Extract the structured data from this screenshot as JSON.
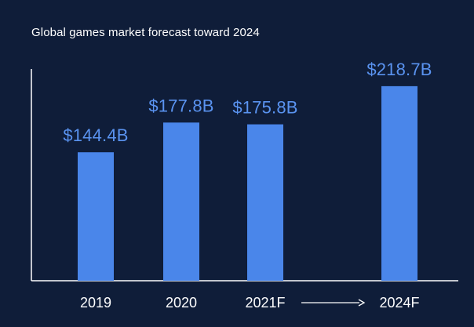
{
  "chart_data": {
    "type": "bar",
    "title": "Global games market forecast toward 2024",
    "categories": [
      "2019",
      "2020",
      "2021F",
      "2024F"
    ],
    "values": [
      144.4,
      177.8,
      175.8,
      218.7
    ],
    "data_labels": [
      "$144.4B",
      "$177.8B",
      "$175.8B",
      "$218.7B"
    ],
    "unit": "B USD",
    "xlabel": "",
    "ylabel": "",
    "ylim": [
      0,
      238
    ],
    "grid": false,
    "legend": "none",
    "annotations": [
      {
        "type": "arrow",
        "from_category": "2021F",
        "to_category": "2024F"
      }
    ],
    "colors": {
      "background": "#0f1d39",
      "bar": "#4a86ea",
      "data_label": "#5a93f0",
      "axis": "#ffffff",
      "text": "#ffffff"
    }
  }
}
